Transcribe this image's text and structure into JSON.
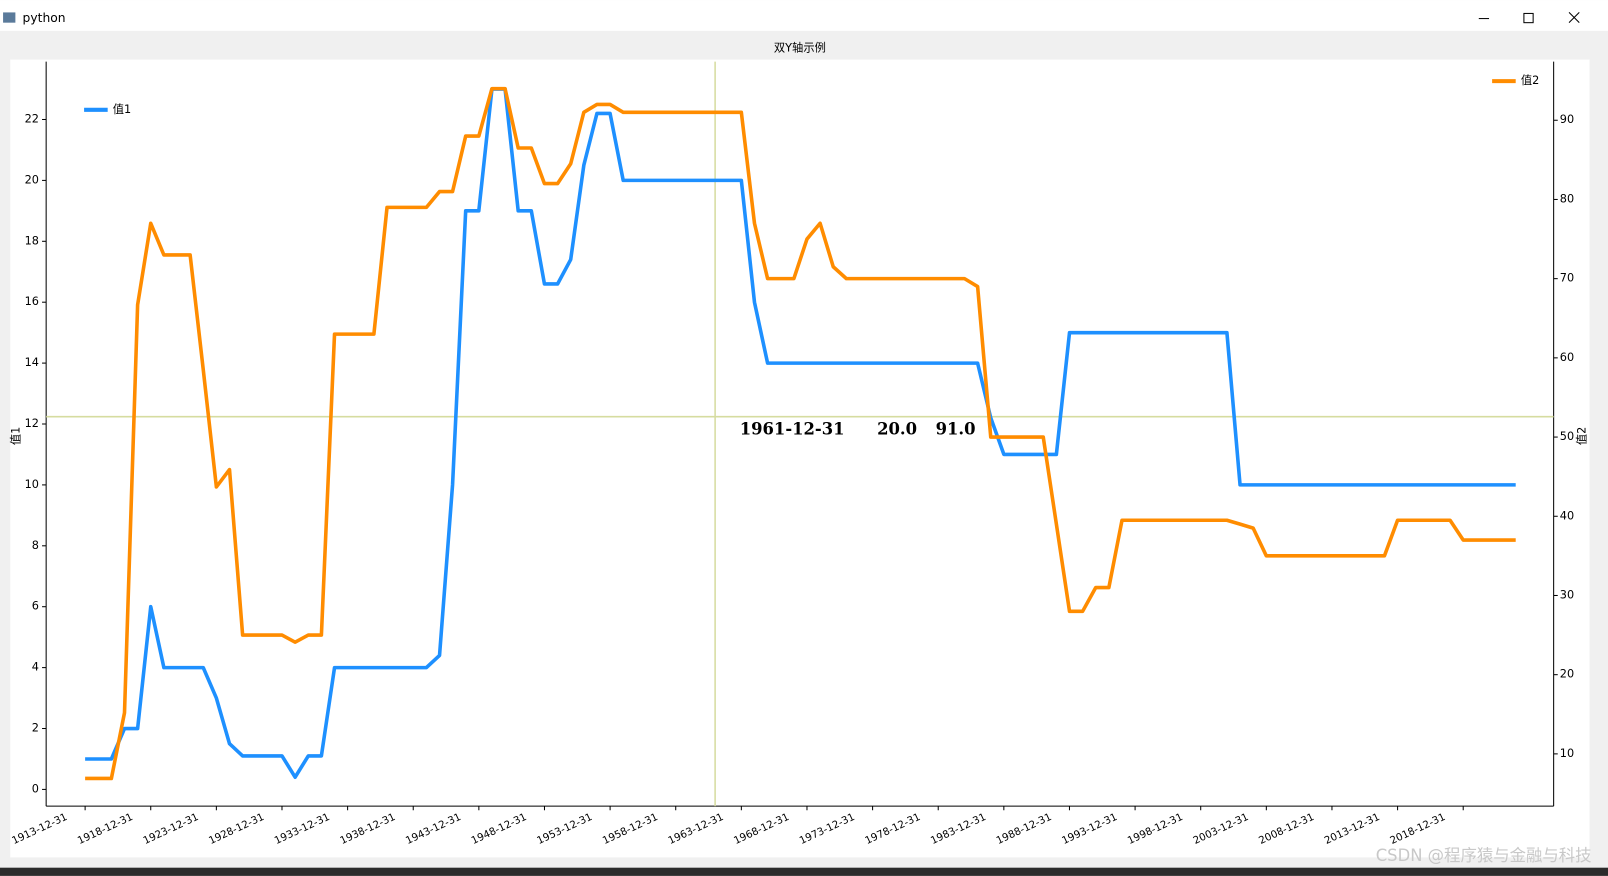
{
  "window": {
    "title": "python"
  },
  "watermark": "CSDN @程序猿与金融与科技",
  "chart_data": {
    "type": "line",
    "title": "双Y轴示例",
    "ylabel": "值1",
    "y2label": "值2",
    "categories": [
      "1913-12-31",
      "1914-12-31",
      "1915-12-31",
      "1916-12-31",
      "1917-12-31",
      "1918-12-31",
      "1919-12-31",
      "1920-12-31",
      "1921-12-31",
      "1922-12-31",
      "1923-12-31",
      "1924-12-31",
      "1925-12-31",
      "1926-12-31",
      "1927-12-31",
      "1928-12-31",
      "1929-12-31",
      "1930-12-31",
      "1931-12-31",
      "1932-12-31",
      "1933-12-31",
      "1934-12-31",
      "1935-12-31",
      "1936-12-31",
      "1937-12-31",
      "1938-12-31",
      "1939-12-31",
      "1940-12-31",
      "1941-12-31",
      "1942-12-31",
      "1943-12-31",
      "1944-12-31",
      "1945-12-31",
      "1946-12-31",
      "1947-12-31",
      "1948-12-31",
      "1949-12-31",
      "1950-12-31",
      "1951-12-31",
      "1952-12-31",
      "1953-12-31",
      "1954-12-31",
      "1955-12-31",
      "1956-12-31",
      "1957-12-31",
      "1958-12-31",
      "1959-12-31",
      "1960-12-31",
      "1961-12-31",
      "1962-12-31",
      "1963-12-31",
      "1964-12-31",
      "1965-12-31",
      "1966-12-31",
      "1967-12-31",
      "1968-12-31",
      "1969-12-31",
      "1970-12-31",
      "1971-12-31",
      "1972-12-31",
      "1973-12-31",
      "1974-12-31",
      "1975-12-31",
      "1976-12-31",
      "1977-12-31",
      "1978-12-31",
      "1979-12-31",
      "1980-12-31",
      "1981-12-31",
      "1982-12-31",
      "1983-12-31",
      "1984-12-31",
      "1985-12-31",
      "1986-12-31",
      "1987-12-31",
      "1988-12-31",
      "1989-12-31",
      "1990-12-31",
      "1991-12-31",
      "1992-12-31",
      "1993-12-31",
      "1994-12-31",
      "1995-12-31",
      "1996-12-31",
      "1997-12-31",
      "1998-12-31",
      "1999-12-31",
      "2000-12-31",
      "2001-12-31",
      "2002-12-31",
      "2003-12-31",
      "2004-12-31",
      "2005-12-31",
      "2006-12-31",
      "2007-12-31",
      "2008-12-31",
      "2009-12-31",
      "2010-12-31",
      "2011-12-31",
      "2012-12-31",
      "2013-12-31",
      "2014-12-31",
      "2015-12-31",
      "2016-12-31",
      "2017-12-31",
      "2018-12-31",
      "2019-12-31",
      "2020-12-31",
      "2021-12-31",
      "2022-12-31"
    ],
    "xticks": [
      "1913-12-31",
      "1918-12-31",
      "1923-12-31",
      "1928-12-31",
      "1933-12-31",
      "1938-12-31",
      "1943-12-31",
      "1948-12-31",
      "1953-12-31",
      "1958-12-31",
      "1963-12-31",
      "1968-12-31",
      "1973-12-31",
      "1978-12-31",
      "1983-12-31",
      "1988-12-31",
      "1993-12-31",
      "1998-12-31",
      "2003-12-31",
      "2008-12-31",
      "2013-12-31",
      "2018-12-31"
    ],
    "series": [
      {
        "name": "值1",
        "color": "#1e90ff",
        "axis": "y",
        "values": [
          1,
          1,
          1,
          2,
          2,
          6,
          4,
          4,
          4,
          4,
          3,
          1.5,
          1.1,
          1.1,
          1.1,
          1.1,
          0.4,
          1.1,
          1.1,
          4,
          4,
          4,
          4,
          4,
          4,
          4,
          4,
          4.4,
          10,
          19,
          19,
          23,
          23,
          19,
          19,
          16.6,
          16.6,
          17.4,
          20.5,
          22.2,
          22.2,
          20,
          20,
          20,
          20,
          20,
          20,
          20,
          20,
          20,
          20,
          16,
          14,
          14,
          14,
          14,
          14,
          14,
          14,
          14,
          14,
          14,
          14,
          14,
          14,
          14,
          14,
          14,
          14,
          12.2,
          11,
          11,
          11,
          11,
          11,
          15,
          15,
          15,
          15,
          15,
          15,
          15,
          15,
          15,
          15,
          15,
          15,
          15,
          10,
          10,
          10,
          10,
          10,
          10,
          10,
          10,
          10,
          10,
          10,
          10,
          10,
          10,
          10,
          10,
          10,
          10,
          10,
          10,
          10,
          10
        ]
      },
      {
        "name": "值2",
        "color": "#ff8c00",
        "axis": "y2",
        "values": [
          6.9,
          6.9,
          6.9,
          15.2,
          66.7,
          77,
          73,
          73,
          73,
          58.5,
          43.7,
          45.9,
          25,
          25,
          25,
          25,
          24.1,
          25,
          25,
          63,
          63,
          63,
          63,
          79,
          79,
          79,
          79,
          81,
          81,
          88,
          88,
          94,
          94,
          86.5,
          86.5,
          82,
          82,
          84.5,
          91,
          92,
          92,
          91,
          91,
          91,
          91,
          91,
          91,
          91,
          91,
          91,
          91,
          77,
          70,
          70,
          70,
          75,
          77,
          71.5,
          70,
          70,
          70,
          70,
          70,
          70,
          70,
          70,
          70,
          70,
          69,
          50,
          50,
          50,
          50,
          50,
          39,
          28,
          28,
          31,
          31,
          39.5,
          39.5,
          39.5,
          39.5,
          39.5,
          39.5,
          39.5,
          39.5,
          39.5,
          39,
          38.5,
          35,
          35,
          35,
          35,
          35,
          35,
          35,
          35,
          35,
          35,
          39.5,
          39.5,
          39.5,
          39.5,
          39.5,
          37,
          37,
          37,
          37,
          37
        ]
      }
    ],
    "ylim": [
      -0.55,
      23.9
    ],
    "yticks": [
      0,
      2,
      4,
      6,
      8,
      10,
      12,
      14,
      16,
      18,
      20,
      22
    ],
    "y2lim": [
      3.4,
      97.4
    ],
    "y2ticks": [
      10,
      20,
      30,
      40,
      50,
      60,
      70,
      80,
      90
    ],
    "grid": false,
    "legend": {
      "y": "upper left",
      "y2": "upper right"
    },
    "crosshair": {
      "x": "1961-12-31",
      "y": 12.24,
      "color": "#d6dca0",
      "labels": [
        "1961-12-31",
        "20.0",
        "91.0"
      ]
    }
  }
}
